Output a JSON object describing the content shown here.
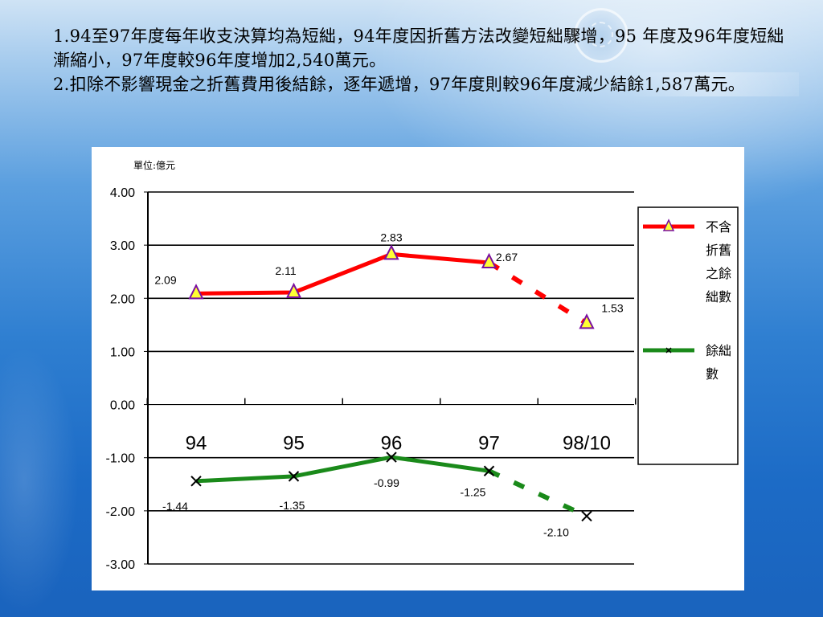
{
  "notes": [
    "1.94至97年度每年收支決算均為短絀，94年度因折舊方法改變短絀驟增，95  年度及96年度短絀漸縮小，97年度較96年度增加2,540萬元。",
    "2.扣除不影響現金之折舊費用後結餘，逐年遞增，97年度則較96年度減少結餘1,587萬元。"
  ],
  "colors": {
    "series_red": "#ff0000",
    "series_green": "#1a8a1a",
    "marker_fill": "#ffff33",
    "marker_stroke": "#7a0fa0"
  },
  "chart_data": {
    "type": "line",
    "unit_label": "單位:億元",
    "categories": [
      "94",
      "95",
      "96",
      "97",
      "98/10"
    ],
    "ylim": [
      -3.0,
      4.0
    ],
    "yticks": [
      "4.00",
      "3.00",
      "2.00",
      "1.00",
      "0.00",
      "-1.00",
      "-2.00",
      "-3.00"
    ],
    "grid": true,
    "legend_position": "right",
    "series": [
      {
        "name": "不含折舊之餘絀數",
        "values": [
          2.09,
          2.11,
          2.83,
          2.67,
          1.53
        ],
        "labels": [
          "2.09",
          "2.11",
          "2.83",
          "2.67",
          "1.53"
        ],
        "color": "#ff0000",
        "marker": "triangle",
        "dashed_last_segment": true
      },
      {
        "name": "餘絀數",
        "values": [
          -1.44,
          -1.35,
          -0.99,
          -1.25,
          -2.1
        ],
        "labels": [
          "-1.44",
          "-1.35",
          "-0.99",
          "-1.25",
          "-2.10"
        ],
        "color": "#1a8a1a",
        "marker": "x",
        "dashed_last_segment": true
      }
    ]
  }
}
